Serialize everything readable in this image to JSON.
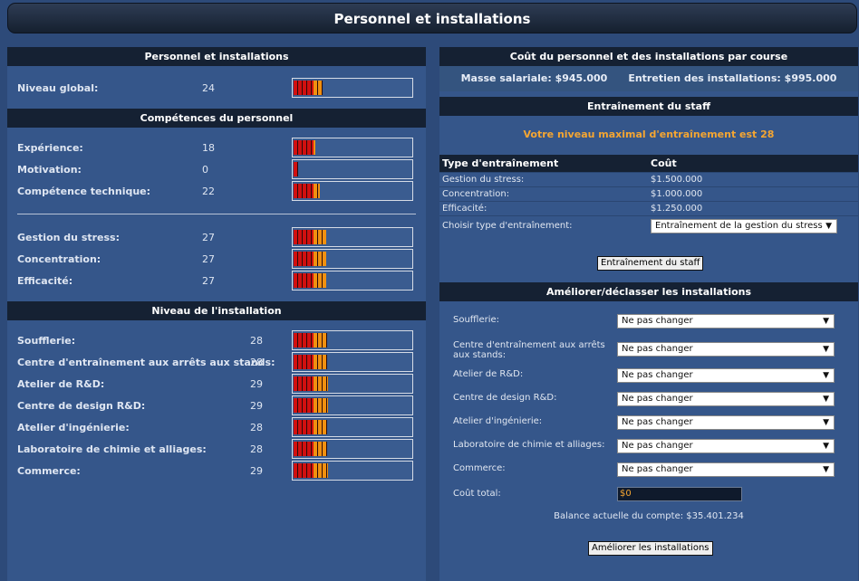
{
  "page_title": "Personnel et installations",
  "left": {
    "header": "Personnel et installations",
    "global": {
      "label": "Niveau global:",
      "value": "24",
      "level": 24
    },
    "skills_header": "Compétences du personnel",
    "skills": [
      {
        "label": "Expérience:",
        "value": "18",
        "level": 18
      },
      {
        "label": "Motivation:",
        "value": "0",
        "level": 0
      },
      {
        "label": "Compétence technique:",
        "value": "22",
        "level": 22
      }
    ],
    "stress_skills": [
      {
        "label": "Gestion du stress:",
        "value": "27",
        "level": 27
      },
      {
        "label": "Concentration:",
        "value": "27",
        "level": 27
      },
      {
        "label": "Efficacité:",
        "value": "27",
        "level": 27
      }
    ],
    "install_header": "Niveau de l'installation",
    "installations": [
      {
        "label": "Soufflerie:",
        "value": "28",
        "level": 28
      },
      {
        "label": "Centre d'entraînement aux arrêts aux stands:",
        "value": "28",
        "level": 28
      },
      {
        "label": "Atelier de R&D:",
        "value": "29",
        "level": 29
      },
      {
        "label": "Centre de design R&D:",
        "value": "29",
        "level": 29
      },
      {
        "label": "Atelier d'ingénierie:",
        "value": "28",
        "level": 28
      },
      {
        "label": "Laboratoire de chimie et alliages:",
        "value": "28",
        "level": 28
      },
      {
        "label": "Commerce:",
        "value": "29",
        "level": 29
      }
    ],
    "bar_max": 100
  },
  "right": {
    "cost_header": "Coût du personnel et des installations par course",
    "salary": "Masse salariale: $945.000",
    "maintenance": "Entretien des installations: $995.000",
    "training_header": "Entraînement du staff",
    "training_max": "Votre niveau maximal d'entraînement est 28",
    "table_headers": [
      "Type d'entraînement",
      "Coût"
    ],
    "training_rows": [
      {
        "type": "Gestion du stress:",
        "cost": "$1.500.000"
      },
      {
        "type": "Concentration:",
        "cost": "$1.000.000"
      },
      {
        "type": "Efficacité:",
        "cost": "$1.250.000"
      }
    ],
    "choose_label": "Choisir type d'entraînement:",
    "choose_value": "Entraînement de la gestion du stress",
    "train_button": "Entraînement du staff",
    "upgrade_header": "Améliorer/déclasser les installations",
    "upgrades": [
      {
        "label": "Soufflerie:",
        "value": "Ne pas changer"
      },
      {
        "label": "Centre d'entraînement aux arrêts aux stands:",
        "value": "Ne pas changer"
      },
      {
        "label": "Atelier de R&D:",
        "value": "Ne pas changer"
      },
      {
        "label": "Centre de design R&D:",
        "value": "Ne pas changer"
      },
      {
        "label": "Atelier d'ingénierie:",
        "value": "Ne pas changer"
      },
      {
        "label": "Laboratoire de chimie et alliages:",
        "value": "Ne pas changer"
      },
      {
        "label": "Commerce:",
        "value": "Ne pas changer"
      }
    ],
    "total_label": "Coût total:",
    "total_value": "$0",
    "balance": "Balance actuelle du compte: $35.401.234",
    "upgrade_button": "Améliorer les installations"
  },
  "colors": {
    "bar_red": "#d01010",
    "bar_orange": "#f09010",
    "accent": "#f5a632",
    "header_bg": "#152133"
  }
}
